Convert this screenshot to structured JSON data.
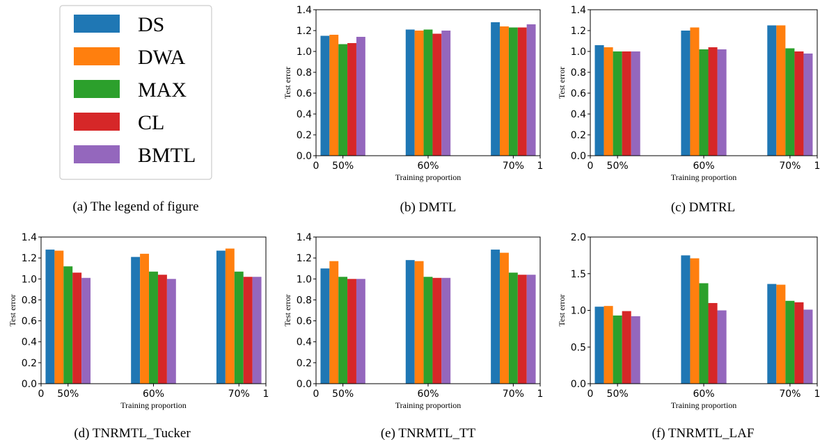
{
  "colors": {
    "DS": "#1f77b4",
    "DWA": "#ff7f0e",
    "MAX": "#2ca02c",
    "CL": "#d62728",
    "BMTL": "#9467bd"
  },
  "legend": {
    "caption": "(a)  The legend of figure",
    "entries": [
      "DS",
      "DWA",
      "MAX",
      "CL",
      "BMTL"
    ]
  },
  "chart_data": [
    {
      "type": "bar",
      "caption": "(b)  DMTL",
      "xlabel": "Training proportion",
      "ylabel": "Test error",
      "categories": [
        "50%",
        "60%",
        "70%"
      ],
      "x_edge_ticks": [
        "0",
        "1"
      ],
      "ylim": [
        0,
        1.4
      ],
      "yticks": [
        "0.0",
        "0.2",
        "0.4",
        "0.6",
        "0.8",
        "1.0",
        "1.2",
        "1.4"
      ],
      "series": [
        {
          "name": "DS",
          "values": [
            1.15,
            1.21,
            1.28
          ]
        },
        {
          "name": "DWA",
          "values": [
            1.16,
            1.2,
            1.24
          ]
        },
        {
          "name": "MAX",
          "values": [
            1.07,
            1.21,
            1.23
          ]
        },
        {
          "name": "CL",
          "values": [
            1.08,
            1.17,
            1.23
          ]
        },
        {
          "name": "BMTL",
          "values": [
            1.14,
            1.2,
            1.26
          ]
        }
      ]
    },
    {
      "type": "bar",
      "caption": "(c)  DMTRL",
      "xlabel": "Training proportion",
      "ylabel": "Test error",
      "categories": [
        "50%",
        "60%",
        "70%"
      ],
      "x_edge_ticks": [
        "0",
        "1"
      ],
      "ylim": [
        0,
        1.4
      ],
      "yticks": [
        "0.0",
        "0.2",
        "0.4",
        "0.6",
        "0.8",
        "1.0",
        "1.2",
        "1.4"
      ],
      "series": [
        {
          "name": "DS",
          "values": [
            1.06,
            1.2,
            1.25
          ]
        },
        {
          "name": "DWA",
          "values": [
            1.04,
            1.23,
            1.25
          ]
        },
        {
          "name": "MAX",
          "values": [
            1.0,
            1.02,
            1.03
          ]
        },
        {
          "name": "CL",
          "values": [
            1.0,
            1.04,
            1.0
          ]
        },
        {
          "name": "BMTL",
          "values": [
            1.0,
            1.02,
            0.98
          ]
        }
      ]
    },
    {
      "type": "bar",
      "caption": "(d)  TNRMTL_Tucker",
      "xlabel": "Training proportion",
      "ylabel": "Test error",
      "categories": [
        "50%",
        "60%",
        "70%"
      ],
      "x_edge_ticks": [
        "0",
        "1"
      ],
      "ylim": [
        0,
        1.4
      ],
      "yticks": [
        "0.0",
        "0.2",
        "0.4",
        "0.6",
        "0.8",
        "1.0",
        "1.2",
        "1.4"
      ],
      "series": [
        {
          "name": "DS",
          "values": [
            1.28,
            1.21,
            1.27
          ]
        },
        {
          "name": "DWA",
          "values": [
            1.27,
            1.24,
            1.29
          ]
        },
        {
          "name": "MAX",
          "values": [
            1.12,
            1.07,
            1.07
          ]
        },
        {
          "name": "CL",
          "values": [
            1.06,
            1.04,
            1.02
          ]
        },
        {
          "name": "BMTL",
          "values": [
            1.01,
            1.0,
            1.02
          ]
        }
      ]
    },
    {
      "type": "bar",
      "caption": "(e)  TNRMTL_TT",
      "xlabel": "Training proportion",
      "ylabel": "Test error",
      "categories": [
        "50%",
        "60%",
        "70%"
      ],
      "x_edge_ticks": [
        "0",
        "1"
      ],
      "ylim": [
        0,
        1.4
      ],
      "yticks": [
        "0.0",
        "0.2",
        "0.4",
        "0.6",
        "0.8",
        "1.0",
        "1.2",
        "1.4"
      ],
      "series": [
        {
          "name": "DS",
          "values": [
            1.1,
            1.18,
            1.28
          ]
        },
        {
          "name": "DWA",
          "values": [
            1.17,
            1.17,
            1.25
          ]
        },
        {
          "name": "MAX",
          "values": [
            1.02,
            1.02,
            1.06
          ]
        },
        {
          "name": "CL",
          "values": [
            1.0,
            1.01,
            1.04
          ]
        },
        {
          "name": "BMTL",
          "values": [
            1.0,
            1.01,
            1.04
          ]
        }
      ]
    },
    {
      "type": "bar",
      "caption": "(f)  TNRMTL_LAF",
      "xlabel": "Training proportion",
      "ylabel": "Test error",
      "categories": [
        "50%",
        "60%",
        "70%"
      ],
      "x_edge_ticks": [
        "0",
        "1"
      ],
      "ylim": [
        0,
        2.0
      ],
      "yticks": [
        "0.0",
        "0.5",
        "1.0",
        "1.5",
        "2.0"
      ],
      "series": [
        {
          "name": "DS",
          "values": [
            1.05,
            1.75,
            1.36
          ]
        },
        {
          "name": "DWA",
          "values": [
            1.06,
            1.71,
            1.35
          ]
        },
        {
          "name": "MAX",
          "values": [
            0.93,
            1.37,
            1.13
          ]
        },
        {
          "name": "CL",
          "values": [
            0.99,
            1.1,
            1.11
          ]
        },
        {
          "name": "BMTL",
          "values": [
            0.92,
            1.0,
            1.01
          ]
        }
      ]
    }
  ]
}
